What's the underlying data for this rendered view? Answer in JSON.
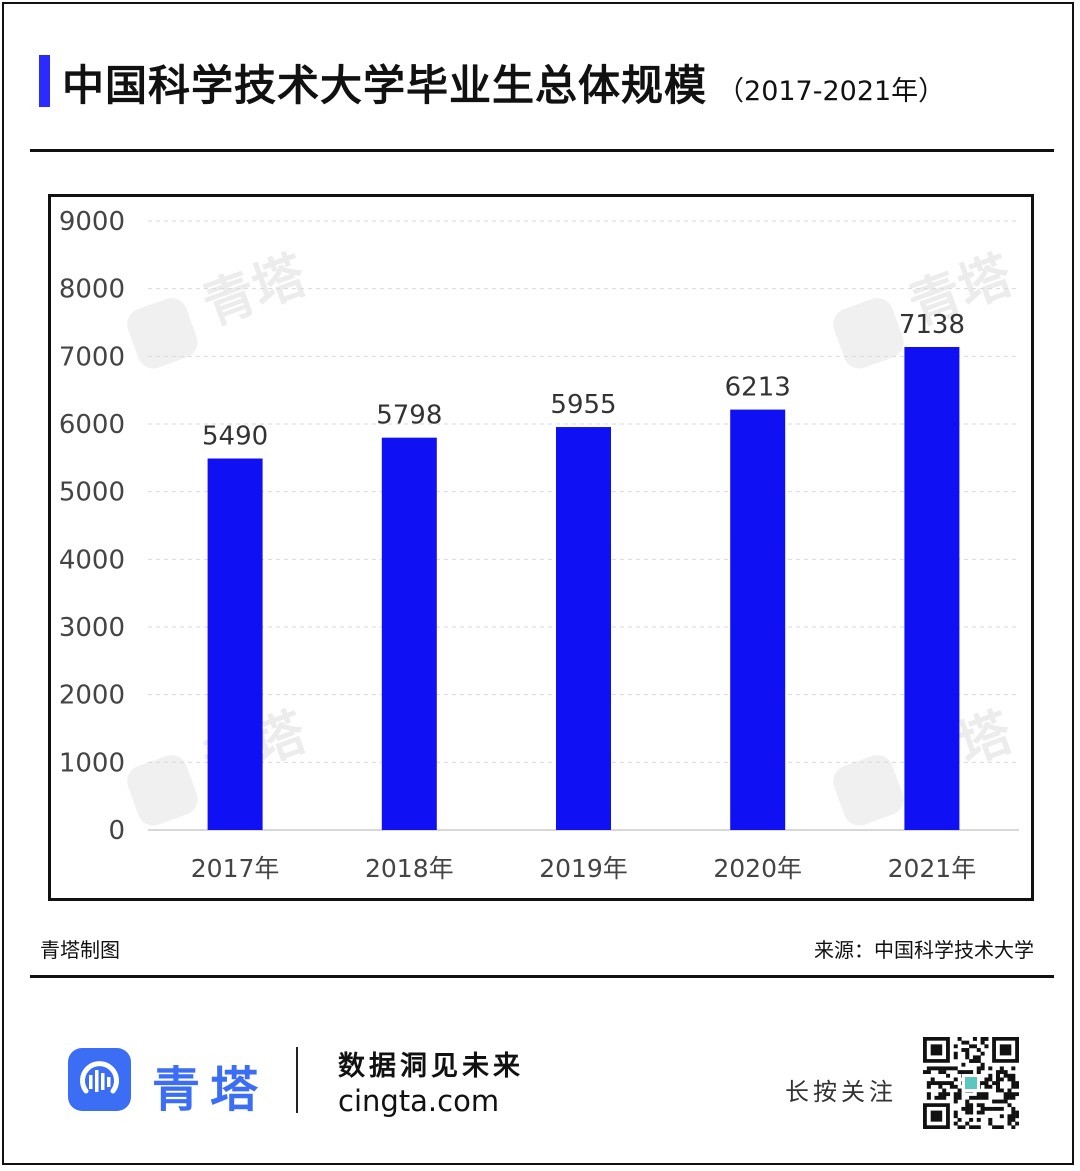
{
  "header": {
    "title": "中国科学技术大学毕业生总体规模",
    "subtitle": "（2017-2021年）"
  },
  "chart_data": {
    "type": "bar",
    "title": "中国科学技术大学毕业生总体规模",
    "subtitle": "（2017-2021年）",
    "categories": [
      "2017年",
      "2018年",
      "2019年",
      "2020年",
      "2021年"
    ],
    "values": [
      5490,
      5798,
      5955,
      6213,
      7138
    ],
    "y_ticks": [
      0,
      1000,
      2000,
      3000,
      4000,
      5000,
      6000,
      7000,
      8000,
      9000
    ],
    "ylim": [
      0,
      9000
    ],
    "xlabel": "",
    "ylabel": "",
    "grid": "horizontal-dashed",
    "legend": "none",
    "bar_color": "#1010f5"
  },
  "watermark": {
    "text": "青塔"
  },
  "credits": {
    "maker": "青塔制图",
    "source": "来源：中国科学技术大学"
  },
  "footer": {
    "brand": "青塔",
    "slogan": "数据洞见未来",
    "site": "cingta.com",
    "follow": "长按关注",
    "brand_color": "#3b6df5"
  }
}
